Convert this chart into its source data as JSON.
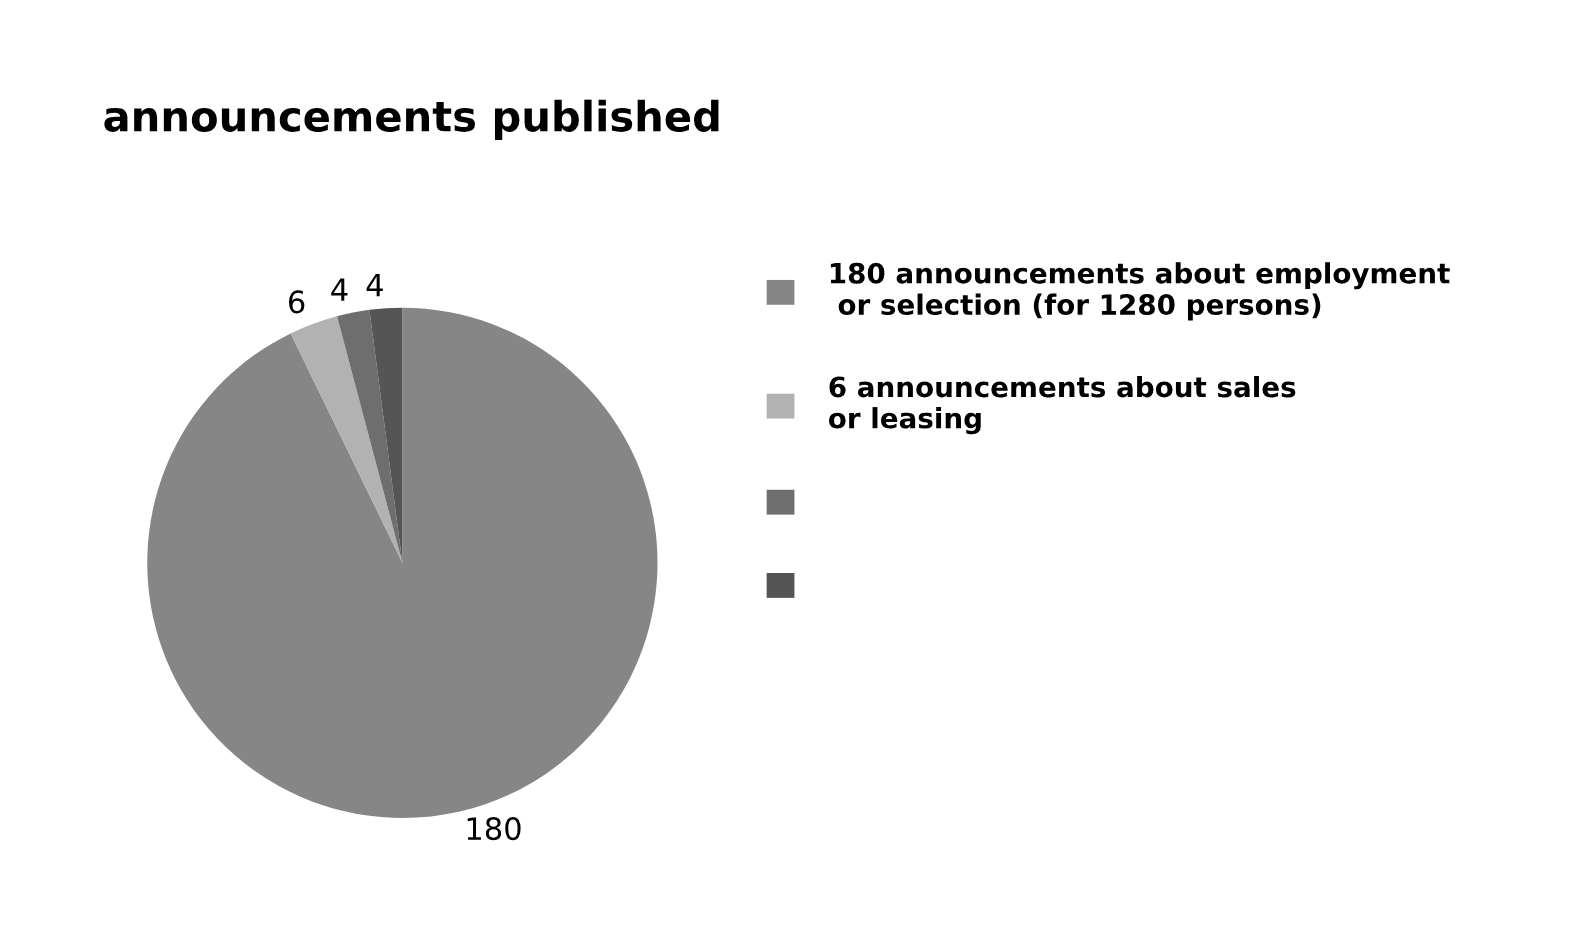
{
  "chart_data": {
    "type": "pie",
    "title": "announcements published",
    "categories": [
      "180 announcements about employment\n or selection (for 1280 persons)",
      "6 announcements about sales\nor leasing",
      null,
      null
    ],
    "values": [
      180,
      6,
      4,
      4
    ],
    "colors": [
      "#868686",
      "#b2b2b2",
      "#6e6e6e",
      "#555555"
    ],
    "data_labels": true,
    "legend": "right"
  }
}
